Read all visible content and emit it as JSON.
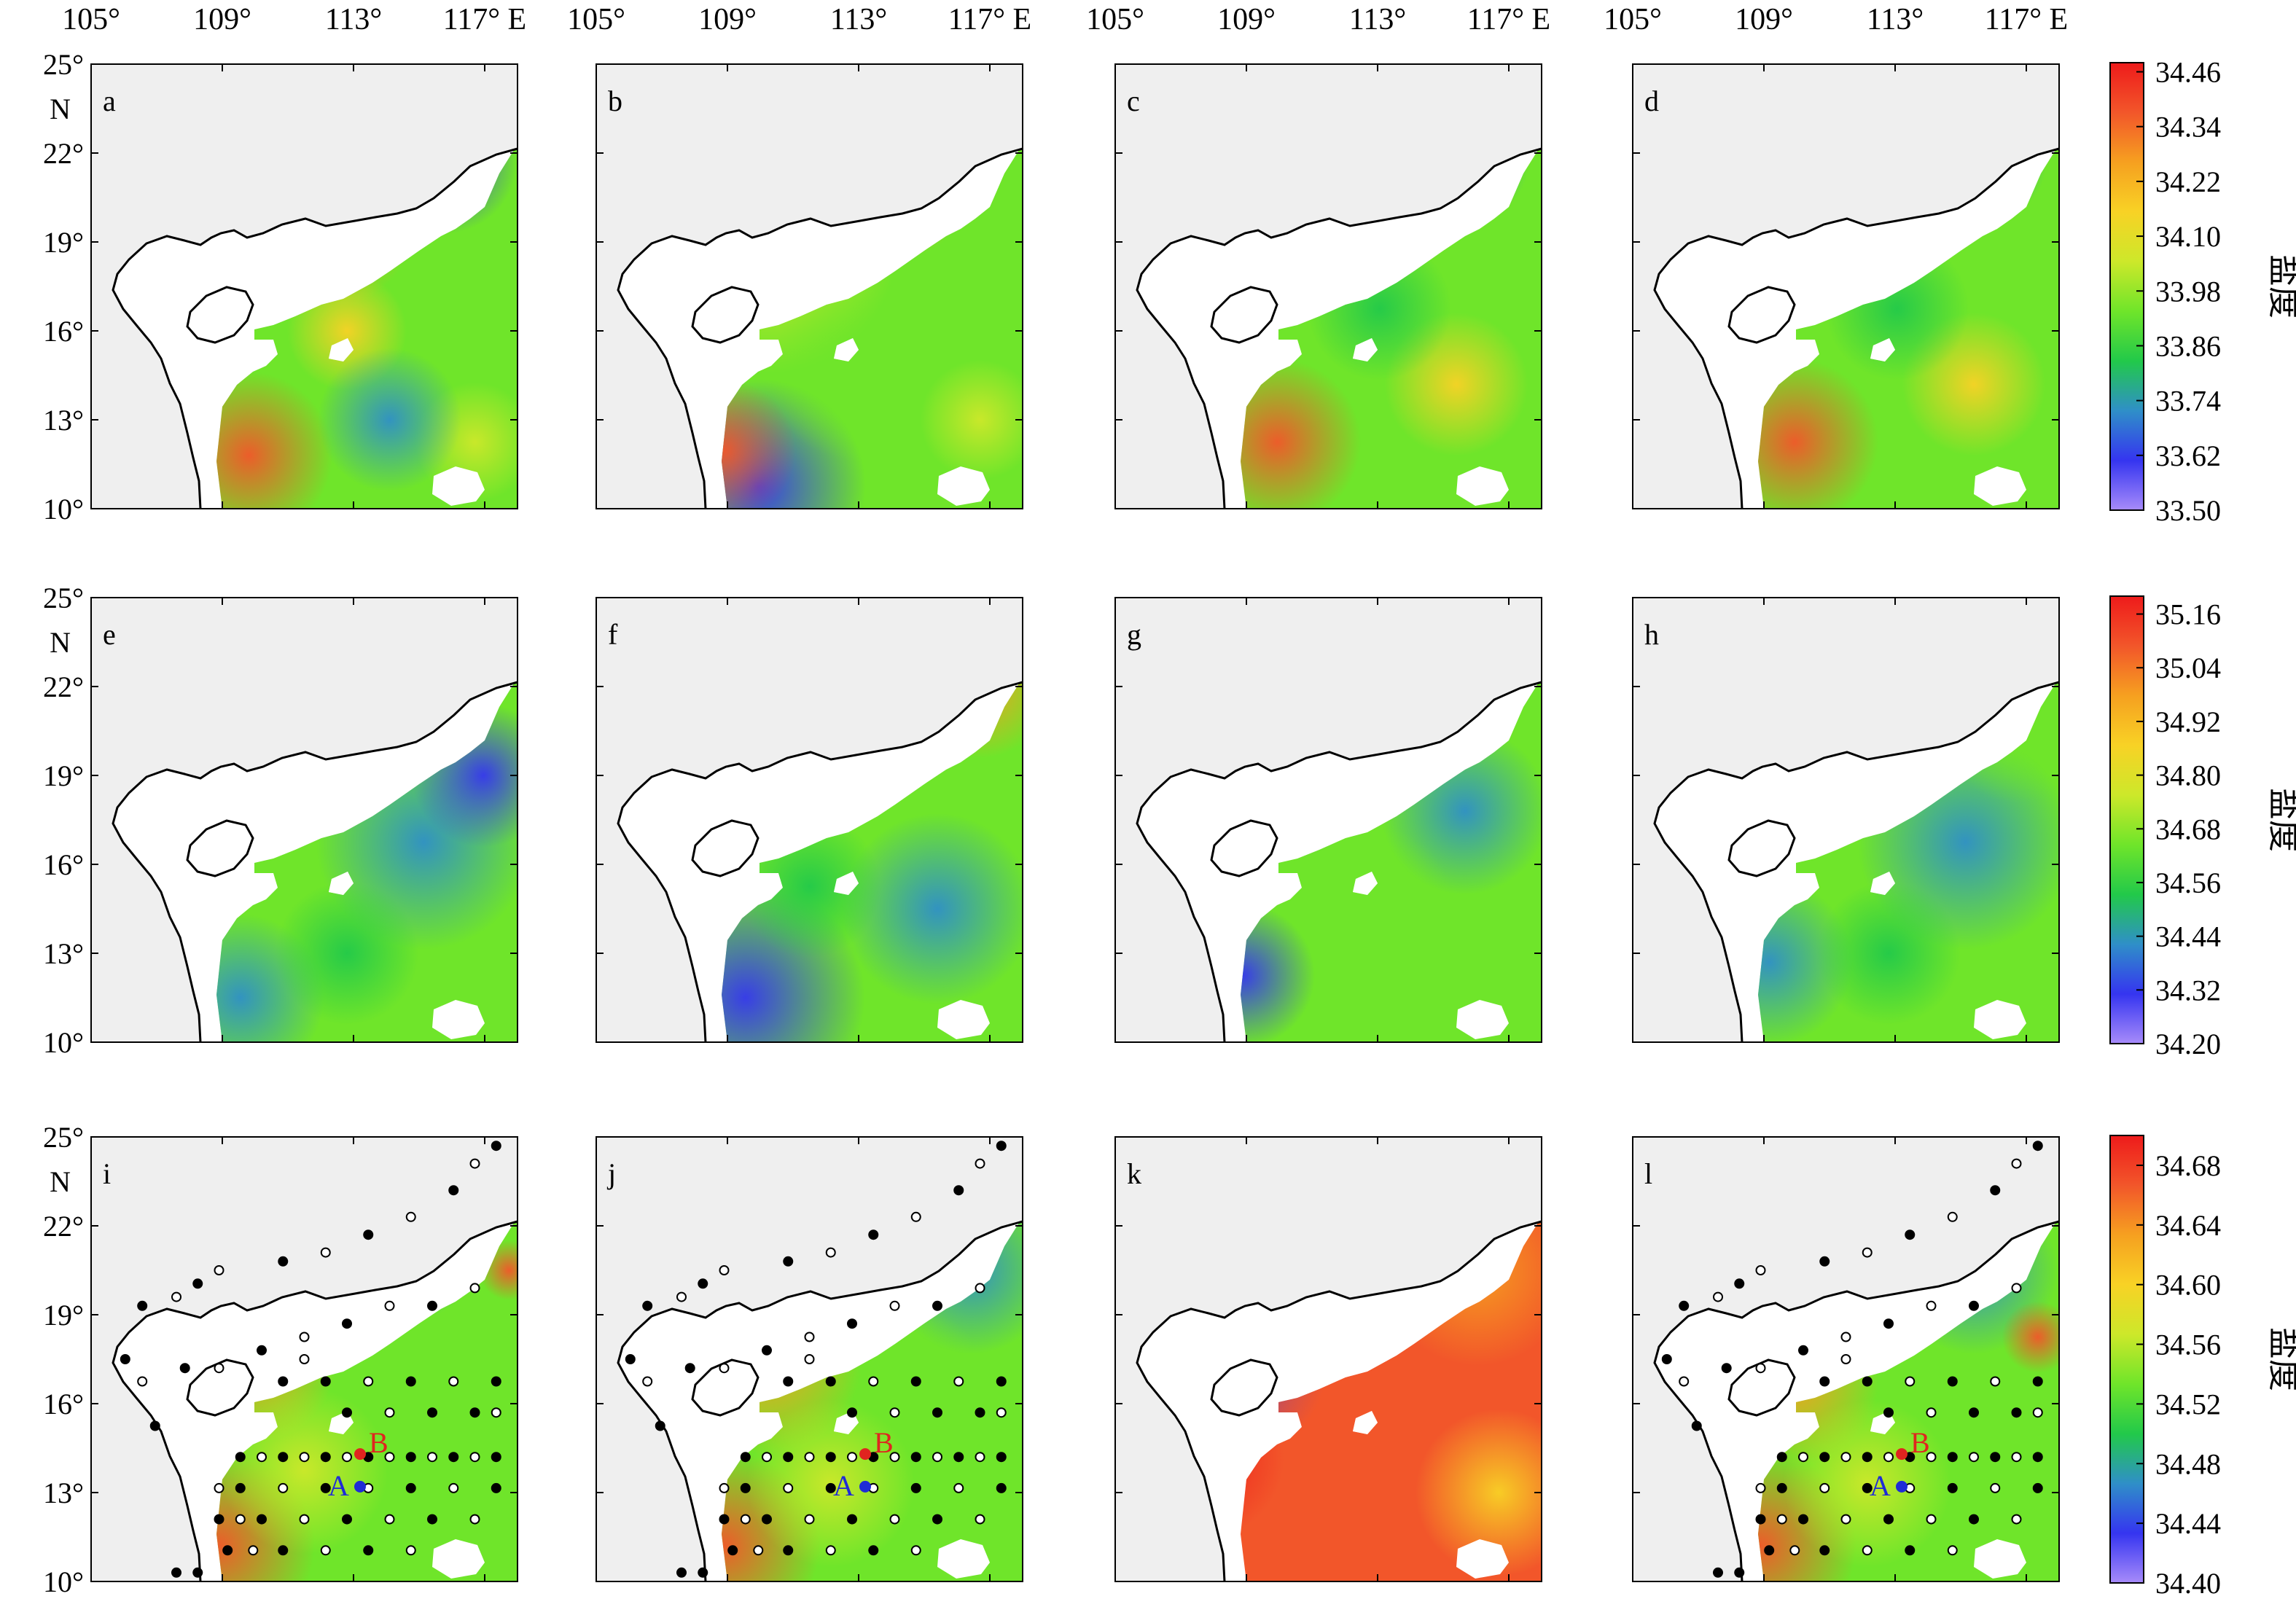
{
  "figure": {
    "top_lon_labels": [
      "105°",
      "109°",
      "113°",
      "117° E"
    ],
    "lat_labels": [
      "25°",
      "22°",
      "19°",
      "16°",
      "13°",
      "10°"
    ],
    "lat_unit": "N",
    "colorbar_title": "盐度",
    "marker_labels": {
      "A": "A",
      "B": "B"
    }
  },
  "rows": [
    {
      "panels": [
        "a",
        "b",
        "c",
        "d"
      ],
      "colorbar": {
        "min": 33.5,
        "max": 34.48,
        "ticks": [
          "34.46",
          "34.34",
          "34.22",
          "34.10",
          "33.98",
          "33.86",
          "33.74",
          "33.62",
          "33.50"
        ]
      }
    },
    {
      "panels": [
        "e",
        "f",
        "g",
        "h"
      ],
      "colorbar": {
        "min": 34.2,
        "max": 35.2,
        "ticks": [
          "35.16",
          "35.04",
          "34.92",
          "34.80",
          "34.68",
          "34.56",
          "34.44",
          "34.32",
          "34.20"
        ]
      }
    },
    {
      "panels": [
        "i",
        "j",
        "k",
        "l"
      ],
      "colorbar": {
        "min": 34.4,
        "max": 34.7,
        "ticks": [
          "34.68",
          "34.64",
          "34.60",
          "34.56",
          "34.52",
          "34.48",
          "34.44",
          "34.40"
        ]
      }
    }
  ],
  "colors": {
    "land": "#efefef",
    "coast": "#000000",
    "colormap": [
      "#a78bfa",
      "#3535f0",
      "#2f8fc8",
      "#22c94a",
      "#6fe52a",
      "#cde82a",
      "#f8d225",
      "#f6a020",
      "#f2562a",
      "#ee1b1b"
    ]
  }
}
